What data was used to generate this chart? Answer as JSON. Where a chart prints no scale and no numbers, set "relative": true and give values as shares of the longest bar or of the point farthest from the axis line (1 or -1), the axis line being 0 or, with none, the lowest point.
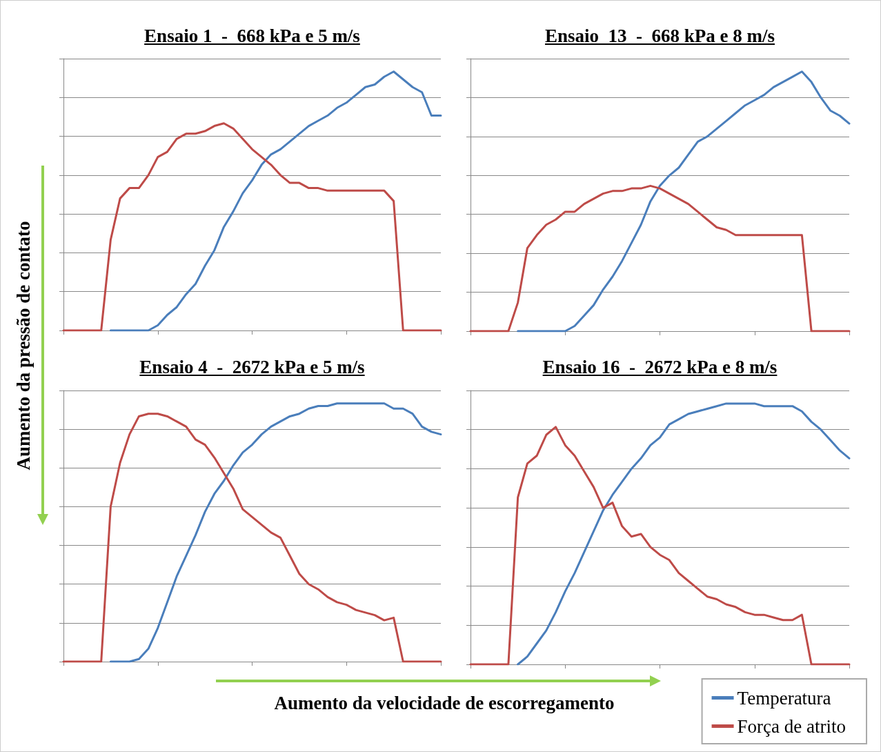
{
  "chart_data": [
    {
      "type": "line",
      "title": "Ensaio 1  -  668 kPa e 5 m/s",
      "ylabel": "Aumento da pressão de contato",
      "relative": true,
      "grid": "y",
      "legend": false,
      "marker": "none",
      "line_style": "solid",
      "categories": [
        null,
        null,
        null,
        null,
        null,
        null,
        null,
        null,
        null,
        null,
        null,
        null,
        null,
        null,
        null,
        null,
        null,
        null,
        null,
        null,
        null,
        null,
        null,
        null,
        null,
        null,
        null,
        null,
        null,
        null,
        null,
        null,
        null,
        null,
        null,
        null,
        null,
        null,
        null,
        null,
        null
      ],
      "series": [
        {
          "color": "#4a7ebb",
          "values": [
            null,
            null,
            null,
            null,
            null,
            0,
            0,
            0,
            0,
            0,
            0.02,
            0.06,
            0.09,
            0.14,
            0.18,
            0.25,
            0.31,
            0.4,
            0.46,
            0.53,
            0.58,
            0.64,
            0.68,
            0.7,
            0.73,
            0.76,
            0.79,
            0.81,
            0.83,
            0.86,
            0.88,
            0.91,
            0.94,
            0.95,
            0.98,
            1,
            0.97,
            0.94,
            0.92,
            0.83,
            0.83
          ]
        },
        {
          "color": "#be4b48",
          "values": [
            0,
            0,
            0,
            0,
            0,
            0.35,
            0.51,
            0.55,
            0.55,
            0.6,
            0.67,
            0.69,
            0.74,
            0.76,
            0.76,
            0.77,
            0.79,
            0.8,
            0.78,
            0.74,
            0.7,
            0.67,
            0.64,
            0.6,
            0.57,
            0.57,
            0.55,
            0.55,
            0.54,
            0.54,
            0.54,
            0.54,
            0.54,
            0.54,
            0.54,
            0.5,
            0,
            0,
            0,
            0,
            0
          ]
        }
      ]
    },
    {
      "type": "line",
      "title": "Ensaio  13  -  668 kPa e 8 m/s",
      "relative": true,
      "grid": "y",
      "legend": false,
      "marker": "none",
      "line_style": "solid",
      "categories": [
        null,
        null,
        null,
        null,
        null,
        null,
        null,
        null,
        null,
        null,
        null,
        null,
        null,
        null,
        null,
        null,
        null,
        null,
        null,
        null,
        null,
        null,
        null,
        null,
        null,
        null,
        null,
        null,
        null,
        null,
        null,
        null,
        null,
        null,
        null,
        null,
        null,
        null,
        null,
        null,
        null
      ],
      "series": [
        {
          "color": "#4a7ebb",
          "values": [
            null,
            null,
            null,
            null,
            null,
            0,
            0,
            0,
            0,
            0,
            0,
            0.02,
            0.06,
            0.1,
            0.16,
            0.21,
            0.27,
            0.34,
            0.41,
            0.5,
            0.56,
            0.6,
            0.63,
            0.68,
            0.73,
            0.75,
            0.78,
            0.81,
            0.84,
            0.87,
            0.89,
            0.91,
            0.94,
            0.96,
            0.98,
            1,
            0.96,
            0.9,
            0.85,
            0.83,
            0.8
          ]
        },
        {
          "color": "#be4b48",
          "values": [
            0,
            0,
            0,
            0,
            0,
            0.11,
            0.32,
            0.37,
            0.41,
            0.43,
            0.46,
            0.46,
            0.49,
            0.51,
            0.53,
            0.54,
            0.54,
            0.55,
            0.55,
            0.56,
            0.55,
            0.53,
            0.51,
            0.49,
            0.46,
            0.43,
            0.4,
            0.39,
            0.37,
            0.37,
            0.37,
            0.37,
            0.37,
            0.37,
            0.37,
            0.37,
            0,
            0,
            0,
            0,
            0
          ]
        }
      ]
    },
    {
      "type": "line",
      "title": "Ensaio 4  -  2672 kPa e 5 m/s",
      "xlabel": "Aumento da velocidade de escorregamento",
      "relative": true,
      "grid": "y",
      "legend": false,
      "marker": "none",
      "line_style": "solid",
      "categories": [
        null,
        null,
        null,
        null,
        null,
        null,
        null,
        null,
        null,
        null,
        null,
        null,
        null,
        null,
        null,
        null,
        null,
        null,
        null,
        null,
        null,
        null,
        null,
        null,
        null,
        null,
        null,
        null,
        null,
        null,
        null,
        null,
        null,
        null,
        null,
        null,
        null,
        null,
        null,
        null,
        null
      ],
      "series": [
        {
          "color": "#4a7ebb",
          "values": [
            null,
            null,
            null,
            null,
            null,
            0,
            0,
            0,
            0.01,
            0.05,
            0.13,
            0.23,
            0.33,
            0.41,
            0.49,
            0.58,
            0.65,
            0.7,
            0.76,
            0.81,
            0.84,
            0.88,
            0.91,
            0.93,
            0.95,
            0.96,
            0.98,
            0.99,
            0.99,
            1.0,
            1,
            1,
            1,
            1.0,
            1.0,
            0.98,
            0.98,
            0.96,
            0.91,
            0.89,
            0.88
          ]
        },
        {
          "color": "#be4b48",
          "values": [
            0,
            0,
            0,
            0,
            0,
            0.6,
            0.77,
            0.88,
            0.95,
            0.96,
            0.96,
            0.95,
            0.93,
            0.91,
            0.86,
            0.84,
            0.79,
            0.73,
            0.67,
            0.59,
            0.56,
            0.53,
            0.5,
            0.48,
            0.41,
            0.34,
            0.3,
            0.28,
            0.25,
            0.23,
            0.22,
            0.2,
            0.19,
            0.18,
            0.16,
            0.17,
            0,
            0,
            0,
            0,
            0
          ]
        }
      ]
    },
    {
      "type": "line",
      "title": "Ensaio 16  -  2672 kPa e 8 m/s",
      "relative": true,
      "grid": "y",
      "legend": "bottom right",
      "marker": "none",
      "line_style": "solid",
      "categories": [
        null,
        null,
        null,
        null,
        null,
        null,
        null,
        null,
        null,
        null,
        null,
        null,
        null,
        null,
        null,
        null,
        null,
        null,
        null,
        null,
        null,
        null,
        null,
        null,
        null,
        null,
        null,
        null,
        null,
        null,
        null,
        null,
        null,
        null,
        null,
        null,
        null,
        null,
        null,
        null,
        null
      ],
      "series": [
        {
          "name": "Temperatura",
          "color": "#4a7ebb",
          "values": [
            null,
            null,
            null,
            null,
            null,
            0,
            0.03,
            0.08,
            0.13,
            0.2,
            0.28,
            0.35,
            0.43,
            0.51,
            0.59,
            0.65,
            0.7,
            0.75,
            0.79,
            0.84,
            0.87,
            0.92,
            0.94,
            0.96,
            0.97,
            0.98,
            0.99,
            1.0,
            1,
            1,
            1.0,
            0.99,
            0.99,
            0.99,
            0.99,
            0.97,
            0.93,
            0.9,
            0.86,
            0.82,
            0.79
          ]
        },
        {
          "name": "Força de atrito",
          "color": "#be4b48",
          "values": [
            0,
            0,
            0,
            0,
            0,
            0.64,
            0.77,
            0.8,
            0.88,
            0.91,
            0.84,
            0.8,
            0.74,
            0.68,
            0.6,
            0.62,
            0.53,
            0.49,
            0.5,
            0.45,
            0.42,
            0.4,
            0.35,
            0.32,
            0.29,
            0.26,
            0.25,
            0.23,
            0.22,
            0.2,
            0.19,
            0.19,
            0.18,
            0.17,
            0.17,
            0.19,
            0,
            0,
            0,
            0,
            0
          ]
        }
      ]
    }
  ]
}
